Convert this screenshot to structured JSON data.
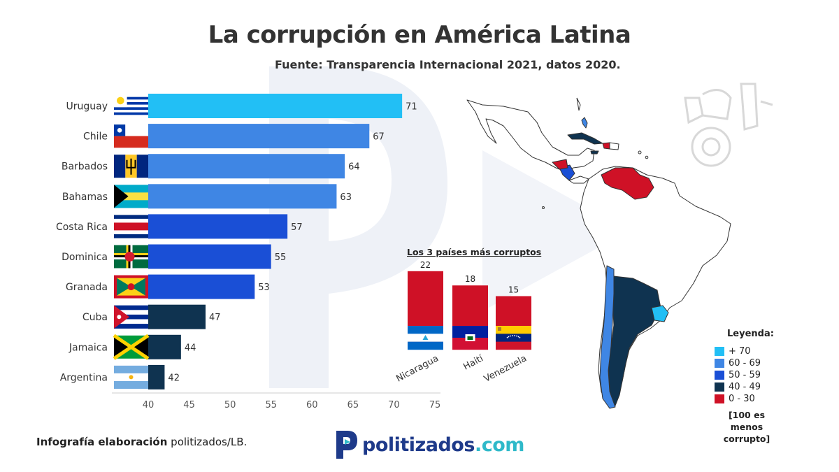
{
  "title": "La corrupción en América Latina",
  "subtitle": "Fuente: Transparencia Internacional 2021, datos 2020.",
  "chart_data": [
    {
      "type": "bar",
      "orientation": "horizontal",
      "categories": [
        "Uruguay",
        "Chile",
        "Barbados",
        "Bahamas",
        "Costa Rica",
        "Dominica",
        "Granada",
        "Cuba",
        "Jamaica",
        "Argentina"
      ],
      "values": [
        71,
        67,
        64,
        63,
        57,
        55,
        53,
        47,
        44,
        42
      ],
      "bar_colors": [
        "#22bff5",
        "#3f86e4",
        "#3f86e4",
        "#3f86e4",
        "#1a4fd6",
        "#1a4fd6",
        "#1a4fd6",
        "#0f3350",
        "#0f3350",
        "#0f3350"
      ],
      "xlim": [
        40,
        75
      ],
      "xticks": [
        40,
        45,
        50,
        55,
        60,
        65,
        70,
        75
      ],
      "xlabel": "",
      "ylabel": ""
    },
    {
      "type": "bar",
      "title": "Los 3 países más corruptos",
      "categories": [
        "Nicaragua",
        "Haití",
        "Venezuela"
      ],
      "values": [
        22,
        18,
        15
      ],
      "bar_color": "#cf1126"
    }
  ],
  "legend": {
    "title": "Leyenda:",
    "items": [
      {
        "label": "+ 70",
        "color": "#22bff5"
      },
      {
        "label": "60 - 69",
        "color": "#3f86e4"
      },
      {
        "label": "50 - 59",
        "color": "#1a4fd6"
      },
      {
        "label": "40 - 49",
        "color": "#0f3350"
      },
      {
        "label": "0 - 30",
        "color": "#cf1126"
      }
    ],
    "note_line1": "[100 es menos",
    "note_line2": "corrupto]"
  },
  "map_colors": {
    "outline": "#333333",
    "land": "#ffffff"
  },
  "credit": {
    "bold": "Infografía elaboración",
    "rest": "politizados/LB."
  },
  "brand": {
    "part1": "politizados",
    "part2": ".com"
  },
  "colors": {
    "brand_dark": "#1e3a8a",
    "brand_teal": "#2fb9c9",
    "watermark": "#e6ebf4"
  }
}
